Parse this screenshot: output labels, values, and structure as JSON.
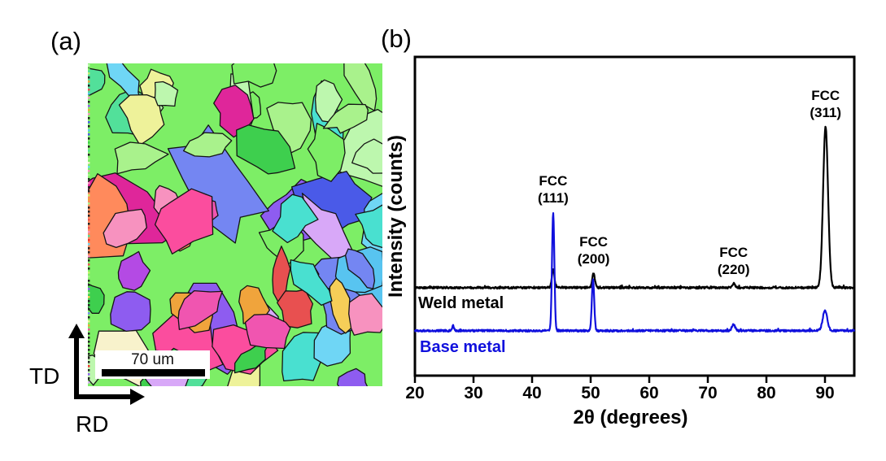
{
  "figure": {
    "panel_a_label": "(a)",
    "panel_b_label": "(b)"
  },
  "panel_a": {
    "description": "EBSD inverse pole figure orientation map with colored grains",
    "scale_bar": {
      "label": "70 um"
    },
    "direction_labels": {
      "vertical": "TD",
      "horizontal": "RD"
    },
    "palette": [
      "#3ecf4e",
      "#7dee66",
      "#a9f28c",
      "#52e09a",
      "#bdf7ae",
      "#f23030",
      "#e85050",
      "#ff6ec7",
      "#f055b0",
      "#df269a",
      "#f792bf",
      "#fb4d9e",
      "#4a5ae8",
      "#7486f2",
      "#8e5cf0",
      "#b44ae4",
      "#58c4f0",
      "#49e0d0",
      "#6fd6f5",
      "#f0a43c",
      "#f6ce58",
      "#eef29a",
      "#f8f2cc",
      "#c9f06e",
      "#d8a8f8",
      "#ff8a5c"
    ],
    "boundary_color": "#151515"
  },
  "chart_data": {
    "type": "line",
    "title": "",
    "xlabel": "2θ (degrees)",
    "ylabel": "Intensity (counts)",
    "xlim": [
      20,
      95
    ],
    "xticks": [
      "20",
      "30",
      "40",
      "50",
      "60",
      "70",
      "80",
      "90"
    ],
    "xtick_values": [
      20,
      30,
      40,
      50,
      60,
      70,
      80,
      90
    ],
    "grid": false,
    "legend_position": "labels-on-curves",
    "series": [
      {
        "name": "Weld metal",
        "color": "#000000",
        "baseline_rel": 0.273,
        "noise_rel": 0.006,
        "peaks": [
          {
            "two_theta": 43.6,
            "rel_height": 0.059,
            "sigma_deg": 0.22
          },
          {
            "two_theta": 50.5,
            "rel_height": 0.045,
            "sigma_deg": 0.22
          },
          {
            "two_theta": 74.4,
            "rel_height": 0.013,
            "sigma_deg": 0.25
          },
          {
            "two_theta": 90.1,
            "rel_height": 0.505,
            "sigma_deg": 0.42
          }
        ]
      },
      {
        "name": "Base metal",
        "color": "#1010dd",
        "baseline_rel": 0.138,
        "noise_rel": 0.006,
        "peaks": [
          {
            "two_theta": 26.5,
            "rel_height": 0.014,
            "sigma_deg": 0.18
          },
          {
            "two_theta": 43.6,
            "rel_height": 0.372,
            "sigma_deg": 0.2
          },
          {
            "two_theta": 50.4,
            "rel_height": 0.163,
            "sigma_deg": 0.2
          },
          {
            "two_theta": 74.4,
            "rel_height": 0.02,
            "sigma_deg": 0.25
          },
          {
            "two_theta": 90.0,
            "rel_height": 0.064,
            "sigma_deg": 0.38
          }
        ]
      }
    ],
    "annotations": [
      {
        "line1": "FCC",
        "line2": "(111)",
        "x_deg": 43.6
      },
      {
        "line1": "FCC",
        "line2": "(200)",
        "x_deg": 50.5
      },
      {
        "line1": "FCC",
        "line2": "(220)",
        "x_deg": 74.4
      },
      {
        "line1": "FCC",
        "line2": "(311)",
        "x_deg": 90.1
      }
    ]
  }
}
